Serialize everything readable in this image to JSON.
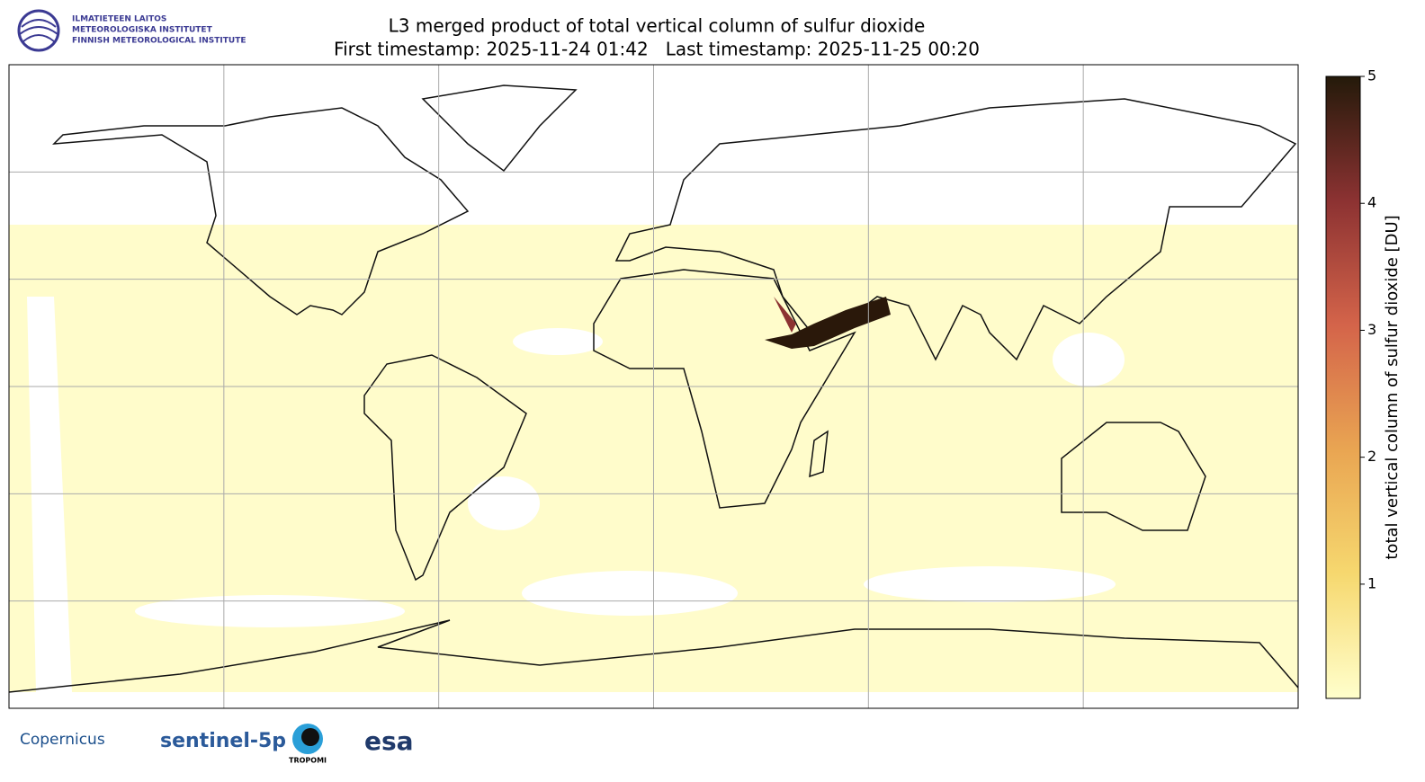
{
  "header": {
    "logo_lines": [
      "ILMATIETEEN LAITOS",
      "METEOROLOGISKA INSTITUTET",
      "FINNISH METEOROLOGICAL INSTITUTE"
    ],
    "title": "L3 merged product of total vertical column of sulfur dioxide",
    "subtitle": "First timestamp: 2025-11-24 01:42   Last timestamp: 2025-11-25 00:20"
  },
  "map": {
    "lonlim": [
      -180,
      180
    ],
    "latlim": [
      -90,
      90
    ],
    "grid_lon": [
      -120,
      -60,
      0,
      60,
      120
    ],
    "grid_lat": [
      -60,
      -30,
      0,
      30,
      60
    ],
    "grid": true
  },
  "colorbar": {
    "label": "total vertical column of sulfur dioxide [DU]",
    "lim": [
      0.1,
      5
    ],
    "ticks": [
      1,
      2,
      3,
      4,
      5
    ],
    "colormap": [
      "#ffffcc",
      "#f6d86f",
      "#e9a552",
      "#d4644a",
      "#8c3232",
      "#241a0a"
    ]
  },
  "footer": {
    "logos": [
      "Copernicus",
      "sentinel-5p",
      "TROPOMI",
      "esa"
    ]
  }
}
